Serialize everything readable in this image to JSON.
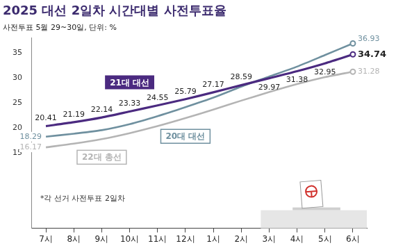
{
  "chart_data": {
    "type": "line",
    "title": "2025 대선 2일차 시간대별 사전투표율",
    "subtitle": "사전투표 5월 29~30일, 단위: %",
    "annotations": [
      "*각 선거 사전투표 2일차"
    ],
    "categories": [
      "7시",
      "8시",
      "9시",
      "10시",
      "11시",
      "12시",
      "1시",
      "2시",
      "3시",
      "4시",
      "5시",
      "6시"
    ],
    "series": [
      {
        "name": "21대 대선",
        "color": "#4b2a80",
        "data_labels": true,
        "values": [
          20.41,
          21.19,
          22.14,
          23.33,
          24.55,
          25.79,
          27.17,
          28.59,
          29.97,
          31.38,
          32.95,
          34.74
        ]
      },
      {
        "name": "20대 대선",
        "color": "#6f909f",
        "data_labels": true,
        "values": [
          18.29,
          18.9,
          19.6,
          20.8,
          22.4,
          24.2,
          26.1,
          28.3,
          30.3,
          32.3,
          34.6,
          36.93
        ],
        "value_labels": [
          "18.29",
          null,
          null,
          null,
          null,
          null,
          null,
          null,
          null,
          null,
          null,
          "36.93"
        ]
      },
      {
        "name": "22대 총선",
        "color": "#b4b4b4",
        "data_labels": true,
        "values": [
          16.17,
          16.9,
          17.8,
          19.0,
          20.4,
          22.0,
          23.7,
          25.5,
          27.2,
          28.8,
          30.2,
          31.28
        ],
        "value_labels": [
          "16.17",
          null,
          null,
          null,
          null,
          null,
          null,
          null,
          null,
          null,
          null,
          "31.28"
        ]
      }
    ],
    "ylim": [
      0,
      38
    ],
    "yticks": [
      15,
      20,
      25,
      30,
      35
    ],
    "grid": false
  }
}
